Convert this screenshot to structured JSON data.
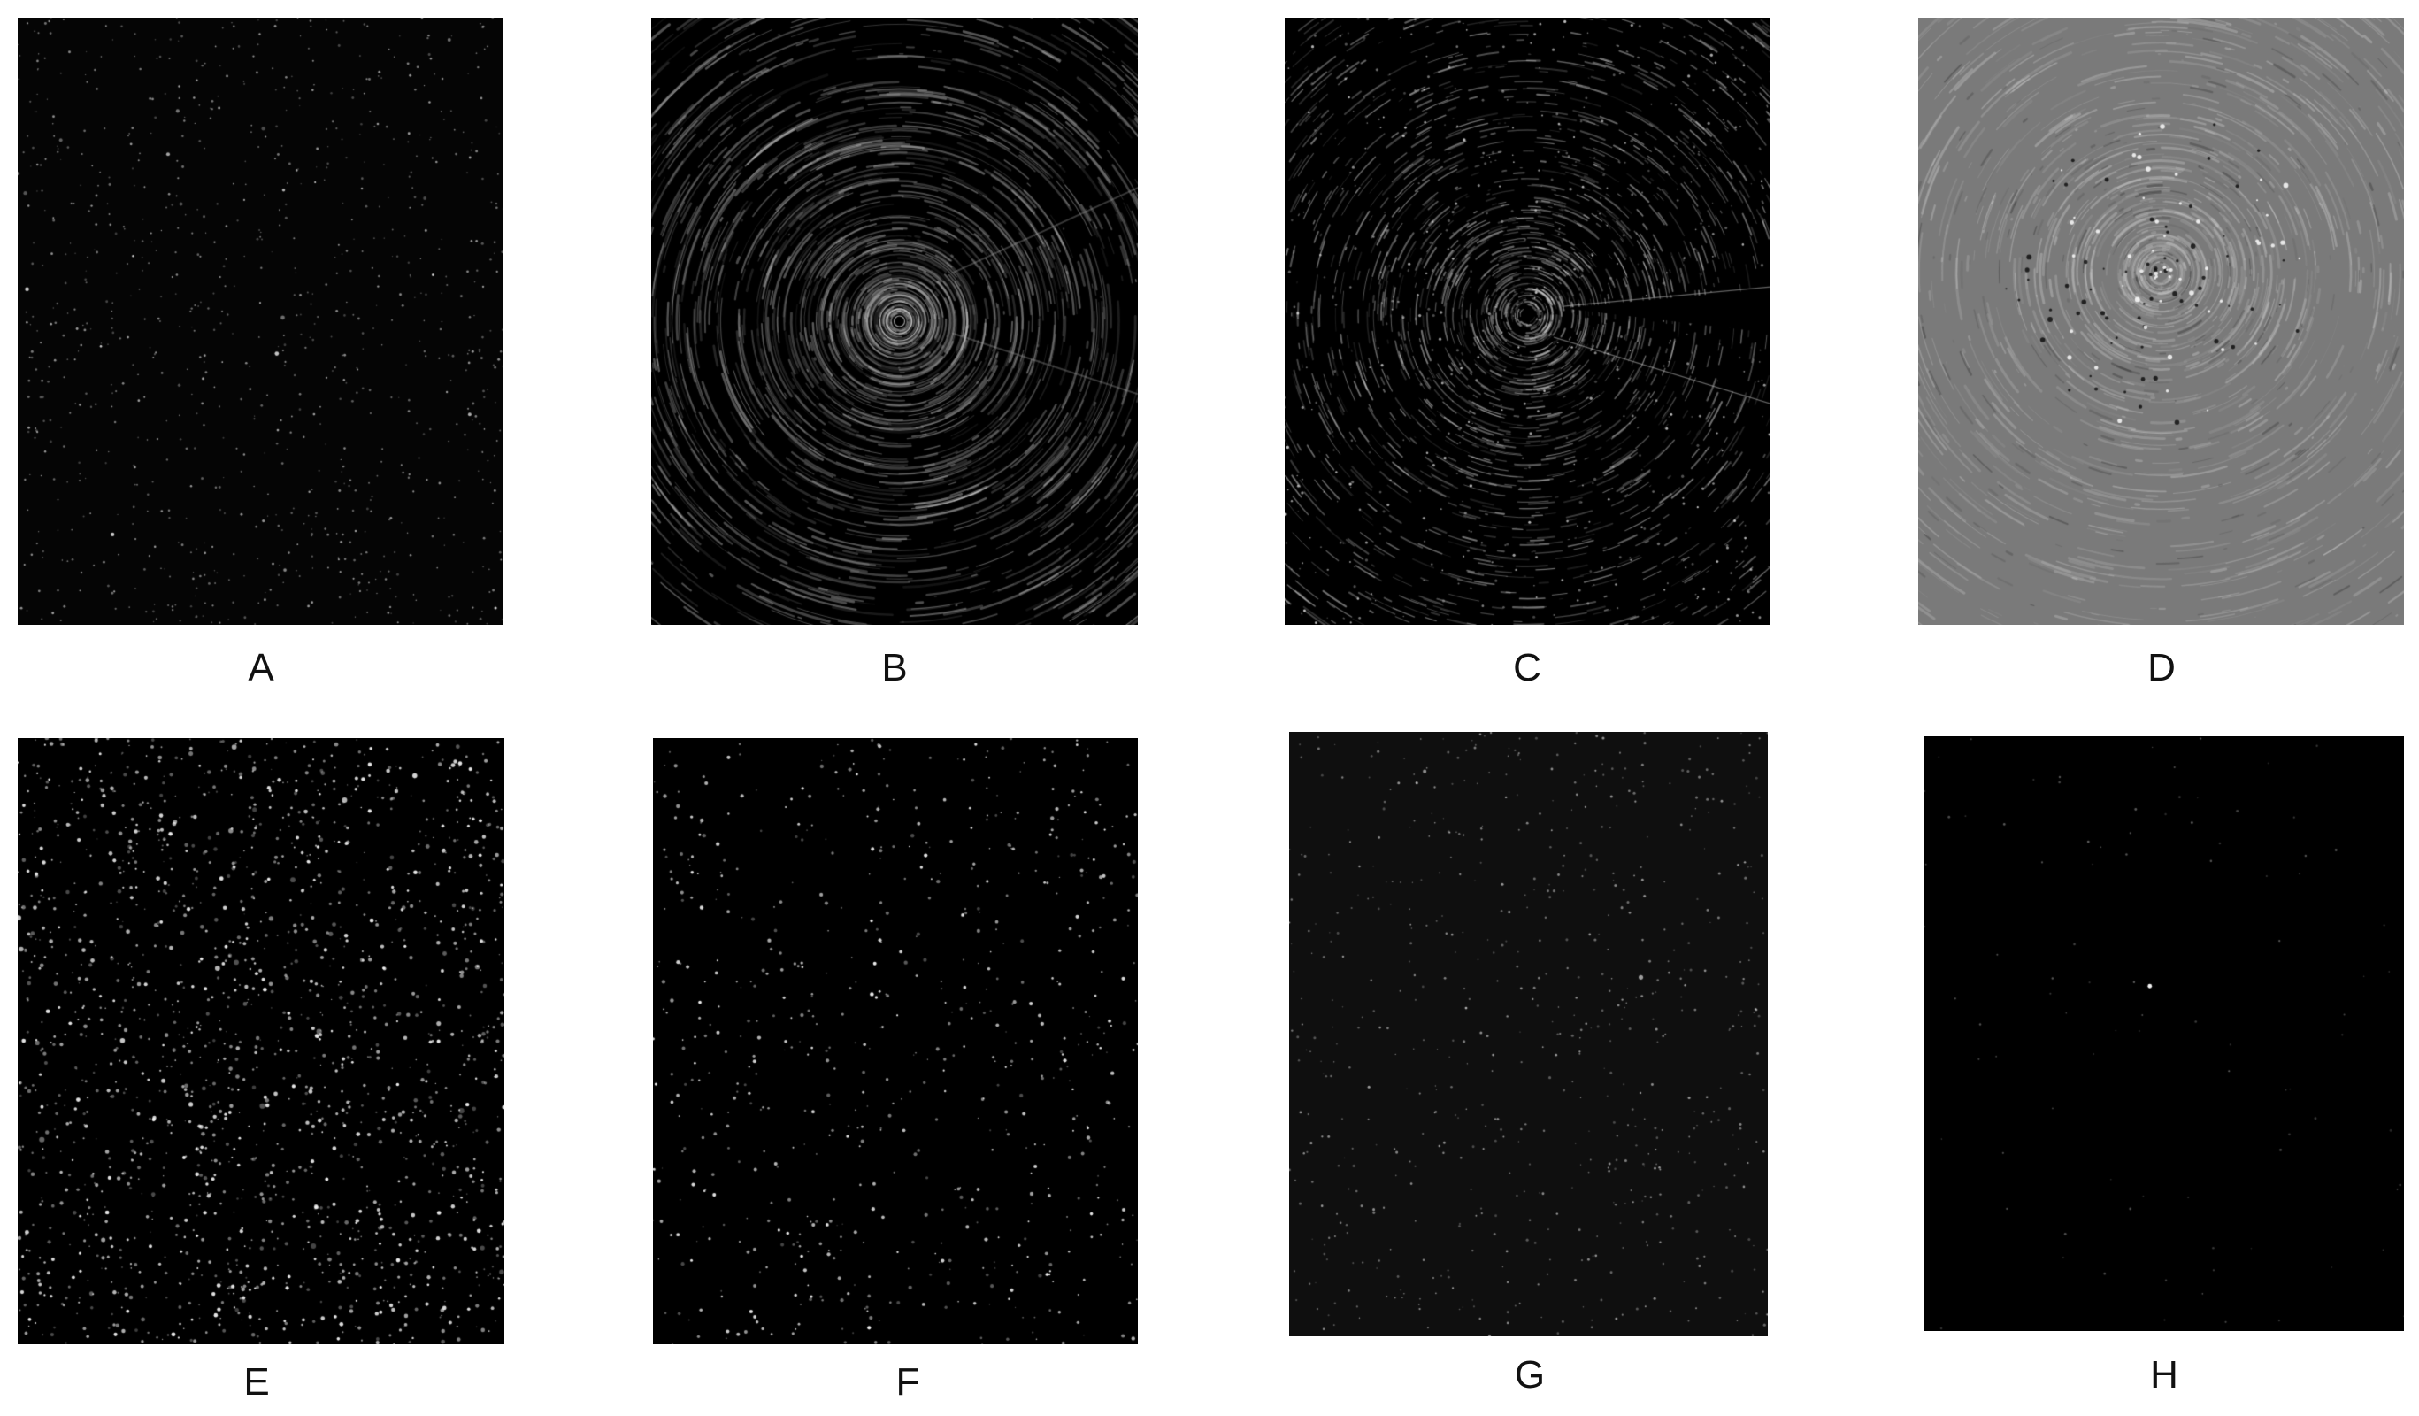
{
  "figure": {
    "panels": [
      {
        "id": "a",
        "label": "A",
        "pattern": "sparse-spots",
        "background": "#050505"
      },
      {
        "id": "b",
        "label": "B",
        "pattern": "concentric-diffraction-rings",
        "background": "#000000"
      },
      {
        "id": "c",
        "label": "C",
        "pattern": "diffraction-rings-with-beamstop-shadow",
        "background": "#000000"
      },
      {
        "id": "d",
        "label": "D",
        "pattern": "difference-map-gray",
        "background": "#7a7a7a"
      },
      {
        "id": "e",
        "label": "E",
        "pattern": "dense-bright-spots",
        "background": "#000000"
      },
      {
        "id": "f",
        "label": "F",
        "pattern": "medium-spots",
        "background": "#000000"
      },
      {
        "id": "g",
        "label": "G",
        "pattern": "faint-spots",
        "background": "#0f0f0f"
      },
      {
        "id": "h",
        "label": "H",
        "pattern": "very-sparse-spots",
        "background": "#000000"
      }
    ]
  }
}
